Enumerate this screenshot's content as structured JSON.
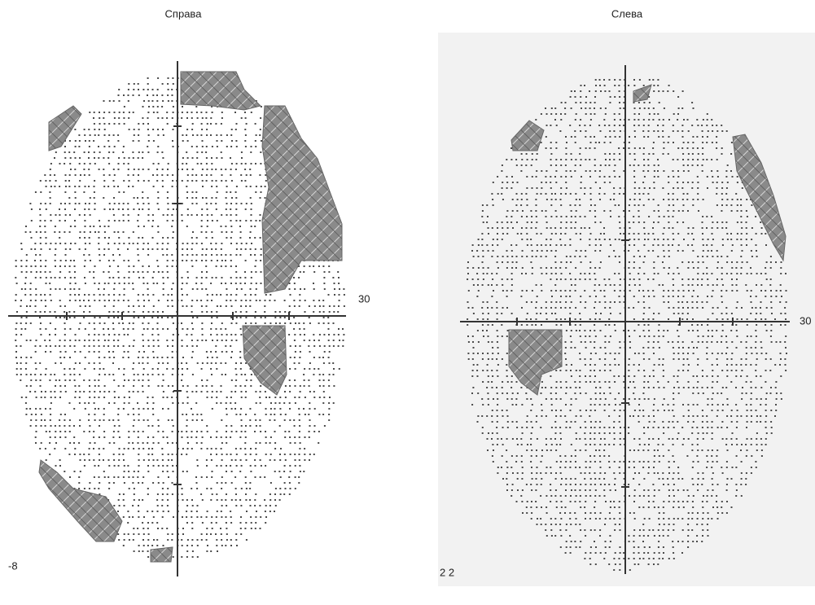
{
  "left": {
    "title": "Справа",
    "axis_label": "30",
    "corner": "-8"
  },
  "right": {
    "title": "Слева",
    "axis_label": "30",
    "corner": "2 2"
  }
}
